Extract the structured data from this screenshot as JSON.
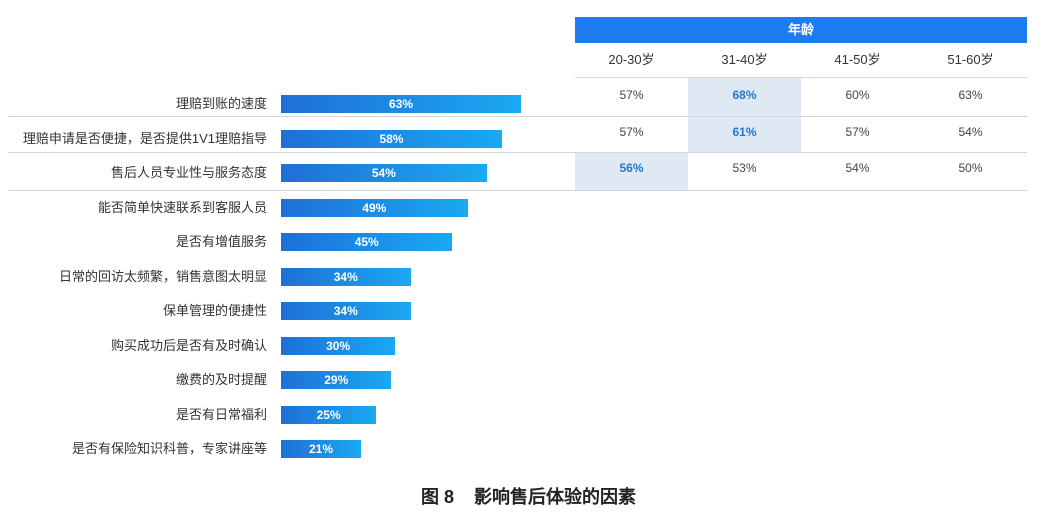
{
  "caption": "图 8    影响售后体验的因素",
  "chart_data": [
    {
      "type": "bar",
      "orientation": "horizontal",
      "categories": [
        "理赔到账的速度",
        "理赔申请是否便捷，是否提供1V1理赔指导",
        "售后人员专业性与服务态度",
        "能否简单快速联系到客服人员",
        "是否有增值服务",
        "日常的回访太频繁，销售意图太明显",
        "保单管理的便捷性",
        "购买成功后是否有及时确认",
        "缴费的及时提醒",
        "是否有日常福利",
        "是否有保险知识科普，专家讲座等"
      ],
      "values": [
        63,
        58,
        54,
        49,
        45,
        34,
        34,
        30,
        29,
        25,
        21
      ],
      "value_labels": [
        "63%",
        "58%",
        "54%",
        "49%",
        "45%",
        "34%",
        "34%",
        "30%",
        "29%",
        "25%",
        "21%"
      ],
      "xlim": [
        0,
        100
      ],
      "colors": {
        "bar_start": "#1f6fd6",
        "bar_end": "#1aa9f2"
      }
    },
    {
      "type": "table",
      "group_header": "年龄",
      "columns": [
        "20-30岁",
        "31-40岁",
        "41-50岁",
        "51-60岁"
      ],
      "rows": [
        {
          "category": "理赔到账的速度",
          "values": [
            "57%",
            "68%",
            "60%",
            "63%"
          ],
          "highlight": 1
        },
        {
          "category": "理赔申请是否便捷，是否提供1V1理赔指导",
          "values": [
            "57%",
            "61%",
            "57%",
            "54%"
          ],
          "highlight": 1
        },
        {
          "category": "售后人员专业性与服务态度",
          "values": [
            "56%",
            "53%",
            "54%",
            "50%"
          ],
          "highlight": 0
        }
      ],
      "colors": {
        "header": "#1f7bf0",
        "highlight_bg": "#dfe9f4",
        "highlight_text": "#1f78d6"
      }
    }
  ]
}
